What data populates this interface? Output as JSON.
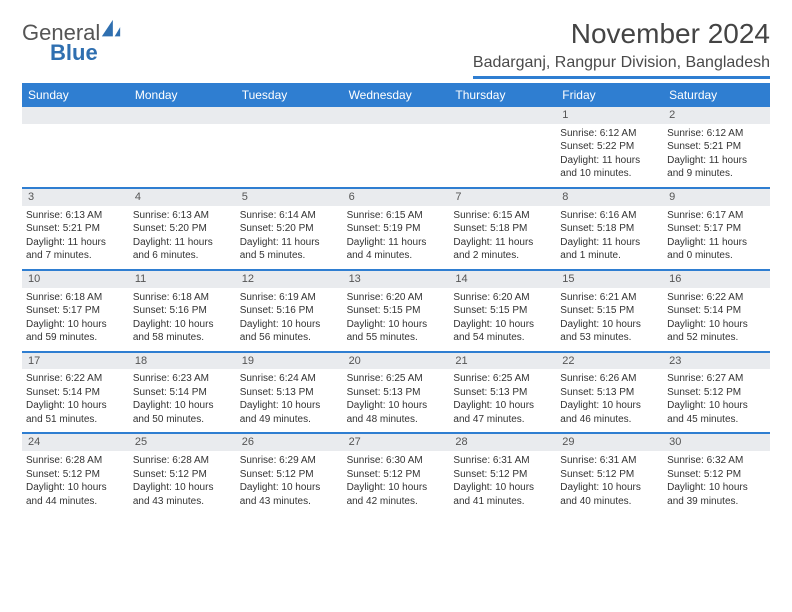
{
  "logo": {
    "word1": "General",
    "word2": "Blue"
  },
  "title": "November 2024",
  "location": "Badarganj, Rangpur Division, Bangladesh",
  "colors": {
    "accent": "#2f7ed1",
    "greyBar": "#e9ebee",
    "text": "#333333",
    "logoBlue": "#2f6fb0"
  },
  "dayHeaders": [
    "Sunday",
    "Monday",
    "Tuesday",
    "Wednesday",
    "Thursday",
    "Friday",
    "Saturday"
  ],
  "weeks": [
    [
      {
        "day": "",
        "sunrise": "",
        "sunset": "",
        "daylight": ""
      },
      {
        "day": "",
        "sunrise": "",
        "sunset": "",
        "daylight": ""
      },
      {
        "day": "",
        "sunrise": "",
        "sunset": "",
        "daylight": ""
      },
      {
        "day": "",
        "sunrise": "",
        "sunset": "",
        "daylight": ""
      },
      {
        "day": "",
        "sunrise": "",
        "sunset": "",
        "daylight": ""
      },
      {
        "day": "1",
        "sunrise": "Sunrise: 6:12 AM",
        "sunset": "Sunset: 5:22 PM",
        "daylight": "Daylight: 11 hours and 10 minutes."
      },
      {
        "day": "2",
        "sunrise": "Sunrise: 6:12 AM",
        "sunset": "Sunset: 5:21 PM",
        "daylight": "Daylight: 11 hours and 9 minutes."
      }
    ],
    [
      {
        "day": "3",
        "sunrise": "Sunrise: 6:13 AM",
        "sunset": "Sunset: 5:21 PM",
        "daylight": "Daylight: 11 hours and 7 minutes."
      },
      {
        "day": "4",
        "sunrise": "Sunrise: 6:13 AM",
        "sunset": "Sunset: 5:20 PM",
        "daylight": "Daylight: 11 hours and 6 minutes."
      },
      {
        "day": "5",
        "sunrise": "Sunrise: 6:14 AM",
        "sunset": "Sunset: 5:20 PM",
        "daylight": "Daylight: 11 hours and 5 minutes."
      },
      {
        "day": "6",
        "sunrise": "Sunrise: 6:15 AM",
        "sunset": "Sunset: 5:19 PM",
        "daylight": "Daylight: 11 hours and 4 minutes."
      },
      {
        "day": "7",
        "sunrise": "Sunrise: 6:15 AM",
        "sunset": "Sunset: 5:18 PM",
        "daylight": "Daylight: 11 hours and 2 minutes."
      },
      {
        "day": "8",
        "sunrise": "Sunrise: 6:16 AM",
        "sunset": "Sunset: 5:18 PM",
        "daylight": "Daylight: 11 hours and 1 minute."
      },
      {
        "day": "9",
        "sunrise": "Sunrise: 6:17 AM",
        "sunset": "Sunset: 5:17 PM",
        "daylight": "Daylight: 11 hours and 0 minutes."
      }
    ],
    [
      {
        "day": "10",
        "sunrise": "Sunrise: 6:18 AM",
        "sunset": "Sunset: 5:17 PM",
        "daylight": "Daylight: 10 hours and 59 minutes."
      },
      {
        "day": "11",
        "sunrise": "Sunrise: 6:18 AM",
        "sunset": "Sunset: 5:16 PM",
        "daylight": "Daylight: 10 hours and 58 minutes."
      },
      {
        "day": "12",
        "sunrise": "Sunrise: 6:19 AM",
        "sunset": "Sunset: 5:16 PM",
        "daylight": "Daylight: 10 hours and 56 minutes."
      },
      {
        "day": "13",
        "sunrise": "Sunrise: 6:20 AM",
        "sunset": "Sunset: 5:15 PM",
        "daylight": "Daylight: 10 hours and 55 minutes."
      },
      {
        "day": "14",
        "sunrise": "Sunrise: 6:20 AM",
        "sunset": "Sunset: 5:15 PM",
        "daylight": "Daylight: 10 hours and 54 minutes."
      },
      {
        "day": "15",
        "sunrise": "Sunrise: 6:21 AM",
        "sunset": "Sunset: 5:15 PM",
        "daylight": "Daylight: 10 hours and 53 minutes."
      },
      {
        "day": "16",
        "sunrise": "Sunrise: 6:22 AM",
        "sunset": "Sunset: 5:14 PM",
        "daylight": "Daylight: 10 hours and 52 minutes."
      }
    ],
    [
      {
        "day": "17",
        "sunrise": "Sunrise: 6:22 AM",
        "sunset": "Sunset: 5:14 PM",
        "daylight": "Daylight: 10 hours and 51 minutes."
      },
      {
        "day": "18",
        "sunrise": "Sunrise: 6:23 AM",
        "sunset": "Sunset: 5:14 PM",
        "daylight": "Daylight: 10 hours and 50 minutes."
      },
      {
        "day": "19",
        "sunrise": "Sunrise: 6:24 AM",
        "sunset": "Sunset: 5:13 PM",
        "daylight": "Daylight: 10 hours and 49 minutes."
      },
      {
        "day": "20",
        "sunrise": "Sunrise: 6:25 AM",
        "sunset": "Sunset: 5:13 PM",
        "daylight": "Daylight: 10 hours and 48 minutes."
      },
      {
        "day": "21",
        "sunrise": "Sunrise: 6:25 AM",
        "sunset": "Sunset: 5:13 PM",
        "daylight": "Daylight: 10 hours and 47 minutes."
      },
      {
        "day": "22",
        "sunrise": "Sunrise: 6:26 AM",
        "sunset": "Sunset: 5:13 PM",
        "daylight": "Daylight: 10 hours and 46 minutes."
      },
      {
        "day": "23",
        "sunrise": "Sunrise: 6:27 AM",
        "sunset": "Sunset: 5:12 PM",
        "daylight": "Daylight: 10 hours and 45 minutes."
      }
    ],
    [
      {
        "day": "24",
        "sunrise": "Sunrise: 6:28 AM",
        "sunset": "Sunset: 5:12 PM",
        "daylight": "Daylight: 10 hours and 44 minutes."
      },
      {
        "day": "25",
        "sunrise": "Sunrise: 6:28 AM",
        "sunset": "Sunset: 5:12 PM",
        "daylight": "Daylight: 10 hours and 43 minutes."
      },
      {
        "day": "26",
        "sunrise": "Sunrise: 6:29 AM",
        "sunset": "Sunset: 5:12 PM",
        "daylight": "Daylight: 10 hours and 43 minutes."
      },
      {
        "day": "27",
        "sunrise": "Sunrise: 6:30 AM",
        "sunset": "Sunset: 5:12 PM",
        "daylight": "Daylight: 10 hours and 42 minutes."
      },
      {
        "day": "28",
        "sunrise": "Sunrise: 6:31 AM",
        "sunset": "Sunset: 5:12 PM",
        "daylight": "Daylight: 10 hours and 41 minutes."
      },
      {
        "day": "29",
        "sunrise": "Sunrise: 6:31 AM",
        "sunset": "Sunset: 5:12 PM",
        "daylight": "Daylight: 10 hours and 40 minutes."
      },
      {
        "day": "30",
        "sunrise": "Sunrise: 6:32 AM",
        "sunset": "Sunset: 5:12 PM",
        "daylight": "Daylight: 10 hours and 39 minutes."
      }
    ]
  ]
}
